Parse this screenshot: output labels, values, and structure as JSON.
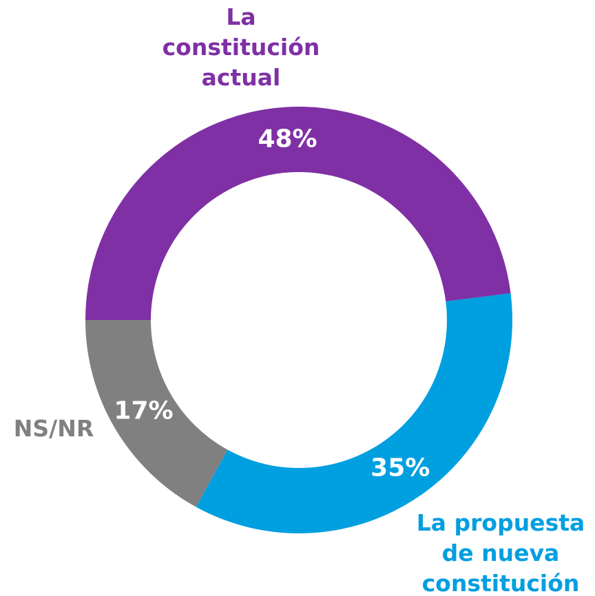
{
  "chart_data": {
    "type": "donut",
    "categories": [
      "La constitución actual",
      "La propuesta de nueva constitución",
      "NS/NR"
    ],
    "values": [
      48,
      35,
      17
    ],
    "value_labels": [
      "48%",
      "35%",
      "17%"
    ],
    "colors": [
      "#7f30a5",
      "#009fe0",
      "#808080"
    ]
  }
}
